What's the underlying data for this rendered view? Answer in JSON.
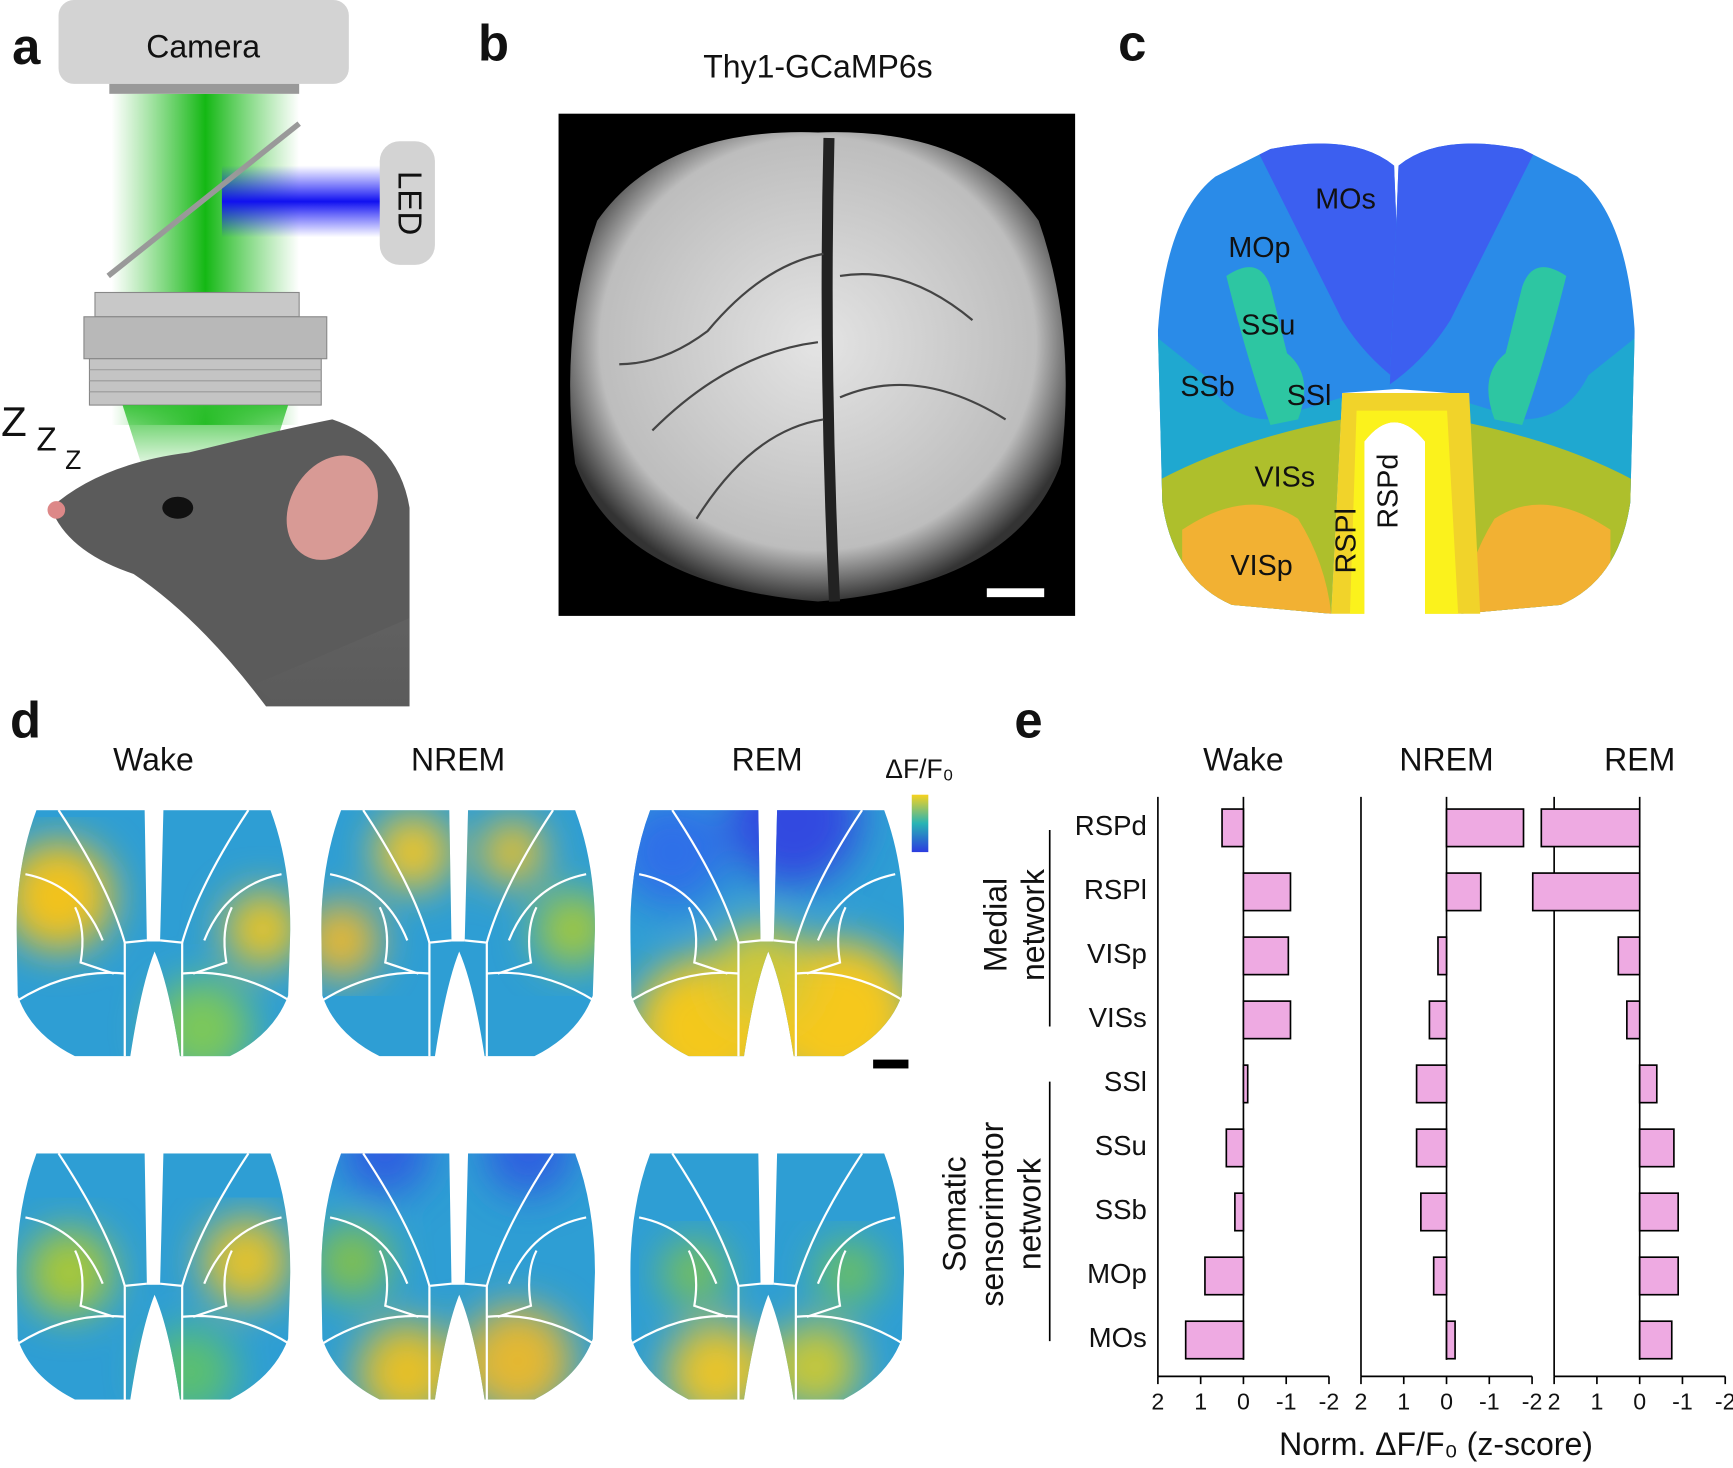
{
  "panel_a": {
    "letter": "a",
    "camera": "Camera",
    "led": "LED"
  },
  "panel_b": {
    "letter": "b",
    "title": "Thy1-GCaMP6s"
  },
  "panel_c": {
    "letter": "c",
    "regions": [
      "MOs",
      "MOp",
      "SSu",
      "SSb",
      "SSl",
      "VISs",
      "VISp",
      "RSPl",
      "RSPd"
    ]
  },
  "panel_d": {
    "letter": "d",
    "states": [
      "Wake",
      "NREM",
      "REM"
    ],
    "colorbar_label": "ΔF/F₀"
  },
  "chart_data": {
    "type": "bar",
    "orientation": "horizontal",
    "panel_label": "e",
    "categories": [
      "RSPd",
      "RSPl",
      "VISp",
      "VISs",
      "SSl",
      "SSu",
      "SSb",
      "MOp",
      "MOs"
    ],
    "series": [
      {
        "name": "Wake",
        "color": "#eeaae2",
        "values": [
          0.5,
          -1.1,
          -1.05,
          -1.1,
          -0.1,
          0.4,
          0.2,
          0.9,
          1.35
        ]
      },
      {
        "name": "NREM",
        "color": "#eeaae2",
        "values": [
          -1.8,
          -0.8,
          0.2,
          0.4,
          0.7,
          0.7,
          0.6,
          0.3,
          -0.2
        ]
      },
      {
        "name": "REM",
        "color": "#eeaae2",
        "values": [
          2.3,
          2.5,
          0.5,
          0.3,
          -0.4,
          -0.8,
          -0.9,
          -0.9,
          -0.75
        ]
      }
    ],
    "xlim": [
      2,
      -2
    ],
    "xticks": [
      2,
      1,
      0,
      -1,
      -2
    ],
    "xlabel": "Norm. ΔF/F₀ (z-score)",
    "groups": [
      {
        "label": [
          "Medial",
          "network"
        ]
      },
      {
        "label": [
          "Somatic",
          "sensorimotor",
          "network"
        ]
      }
    ]
  }
}
